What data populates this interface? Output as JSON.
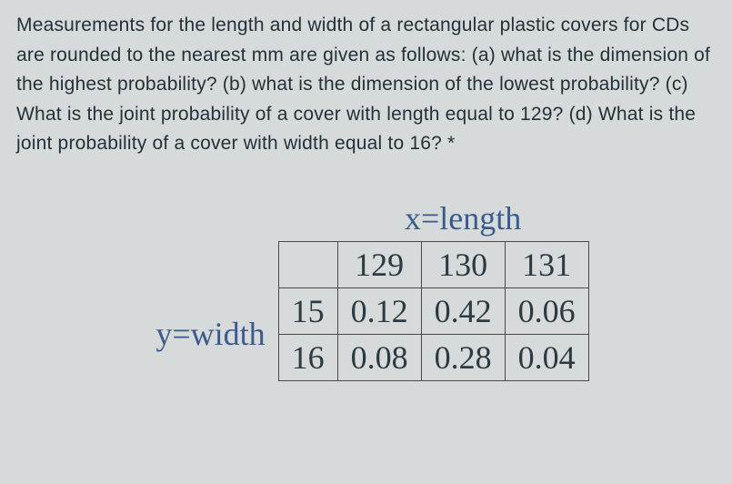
{
  "question_text": "Measurements for the length and width of a rectangular plastic covers for CDs are rounded to the nearest mm are given as follows: (a) what is the dimension of the highest probability? (b) what is the dimension of the lowest probability? (c) What is the joint probability of a cover with length equal to 129? (d) What is the joint probability of a cover with width equal to 16? *",
  "table": {
    "type": "table",
    "x_axis_label": "x=length",
    "y_axis_label": "y=width",
    "columns": [
      "129",
      "130",
      "131"
    ],
    "row_labels": [
      "15",
      "16"
    ],
    "rows": [
      [
        "0.12",
        "0.42",
        "0.06"
      ],
      [
        "0.08",
        "0.28",
        "0.04"
      ]
    ],
    "border_color": "#4a4a4a",
    "axis_label_color": "#3b5b8a",
    "cell_text_color": "#2c3a42",
    "background_color": "#d6dadb",
    "font_family": "Times New Roman",
    "cell_fontsize": 36,
    "axis_fontsize": 36
  },
  "question_style": {
    "text_color": "#233138",
    "fontsize": 21,
    "line_height": 1.55,
    "font_family": "Arial"
  }
}
